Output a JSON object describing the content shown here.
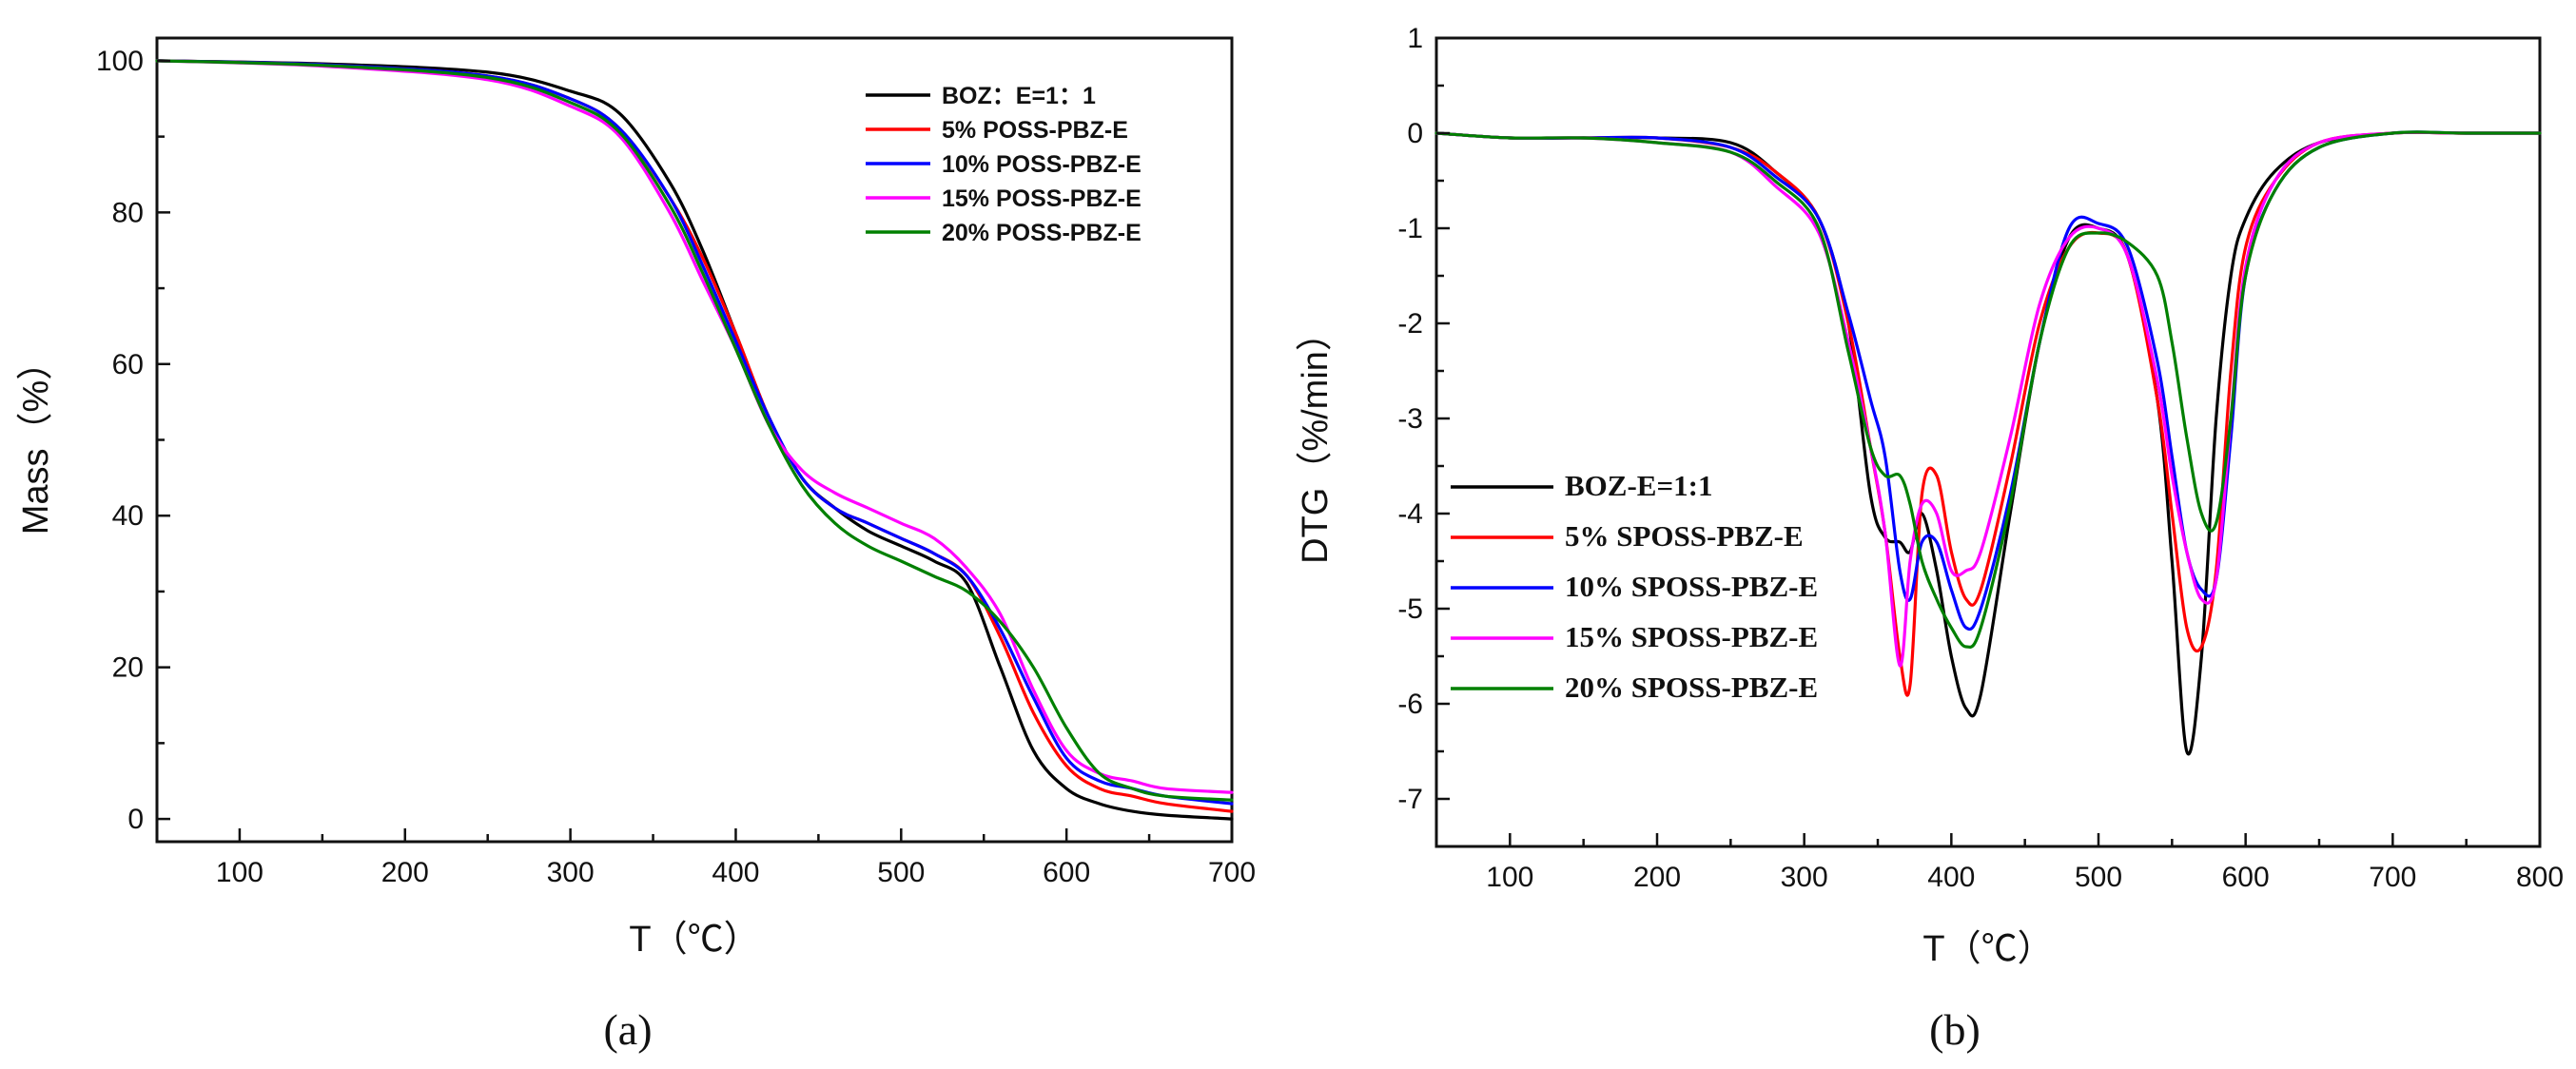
{
  "chart_data": [
    {
      "type": "line",
      "panel": "(a)",
      "xlabel": "T（℃）",
      "ylabel": "Mass（%）",
      "xlim": [
        50,
        700
      ],
      "ylim": [
        -3,
        103
      ],
      "xticks": [
        100,
        200,
        300,
        400,
        500,
        600,
        700
      ],
      "yticks": [
        0,
        20,
        40,
        60,
        80,
        100
      ],
      "x": [
        50,
        150,
        250,
        300,
        330,
        360,
        380,
        400,
        420,
        440,
        460,
        480,
        500,
        520,
        540,
        560,
        580,
        600,
        620,
        640,
        660,
        700
      ],
      "series": [
        {
          "name": "BOZ：E=1：1",
          "color": "#000000",
          "values": [
            100,
            99.6,
            98.5,
            96,
            93,
            84,
            75,
            64,
            53,
            45,
            41,
            38,
            36,
            34,
            31,
            20,
            9,
            4,
            2,
            1,
            0.5,
            0
          ]
        },
        {
          "name": "5% POSS-PBZ-E",
          "color": "#ff0000",
          "values": [
            100,
            99.5,
            98,
            95,
            91,
            82,
            74,
            64,
            53,
            45,
            41,
            39,
            37,
            35,
            32,
            24,
            14,
            7,
            4,
            3,
            2,
            1
          ]
        },
        {
          "name": "10% POSS-PBZ-E",
          "color": "#0000ff",
          "values": [
            100,
            99.5,
            98,
            95,
            91,
            82,
            73,
            63,
            53,
            45,
            41,
            39,
            37,
            35,
            32,
            25,
            16,
            8,
            5,
            4,
            3,
            2
          ]
        },
        {
          "name": "15% POSS-PBZ-E",
          "color": "#ff00ff",
          "values": [
            100,
            99.3,
            97.5,
            94,
            90,
            80,
            71,
            62,
            52,
            46,
            43,
            41,
            39,
            37,
            33,
            27,
            17,
            9,
            6,
            5,
            4,
            3.5
          ]
        },
        {
          "name": "20% POSS-PBZ-E",
          "color": "#008000",
          "values": [
            100,
            99.4,
            97.8,
            94.5,
            90.5,
            81,
            72,
            62,
            52,
            44,
            39,
            36,
            34,
            32,
            30,
            26,
            20,
            12,
            6,
            4,
            3,
            2.5
          ]
        }
      ]
    },
    {
      "type": "line",
      "panel": "(b)",
      "xlabel": "T（℃）",
      "ylabel": "DTG（%/min）",
      "xlim": [
        50,
        800
      ],
      "ylim": [
        -7.5,
        1
      ],
      "xticks": [
        100,
        200,
        300,
        400,
        500,
        600,
        700,
        800
      ],
      "yticks": [
        1,
        0,
        -1,
        -2,
        -3,
        -4,
        -5,
        -6,
        -7
      ],
      "x": [
        50,
        100,
        150,
        200,
        250,
        280,
        310,
        330,
        345,
        355,
        365,
        372,
        380,
        390,
        400,
        410,
        420,
        440,
        460,
        480,
        500,
        520,
        540,
        550,
        560,
        570,
        580,
        590,
        600,
        620,
        650,
        700,
        750,
        800
      ],
      "series": [
        {
          "name": "BOZ-E=1:1",
          "color": "#000000",
          "values": [
            0,
            -0.05,
            -0.05,
            -0.05,
            -0.1,
            -0.4,
            -0.9,
            -2.0,
            -3.8,
            -4.25,
            -4.3,
            -4.4,
            -4.0,
            -4.6,
            -5.5,
            -6.05,
            -5.9,
            -4.0,
            -2.2,
            -1.1,
            -1.0,
            -1.3,
            -2.8,
            -4.5,
            -6.5,
            -5.5,
            -3.0,
            -1.5,
            -0.9,
            -0.4,
            -0.1,
            0,
            0,
            0
          ]
        },
        {
          "name": "5%  SPOSS-PBZ-E",
          "color": "#ff0000",
          "values": [
            0,
            -0.05,
            -0.05,
            -0.05,
            -0.15,
            -0.4,
            -0.9,
            -2.0,
            -3.3,
            -4.2,
            -5.5,
            -5.8,
            -3.8,
            -3.6,
            -4.4,
            -4.9,
            -4.8,
            -3.5,
            -2.0,
            -1.2,
            -1.05,
            -1.3,
            -2.8,
            -4.0,
            -5.2,
            -5.4,
            -4.6,
            -2.5,
            -1.2,
            -0.5,
            -0.1,
            0,
            0,
            0
          ]
        },
        {
          "name": "10% SPOSS-PBZ-E",
          "color": "#0000ff",
          "values": [
            0,
            -0.05,
            -0.05,
            -0.05,
            -0.15,
            -0.45,
            -0.9,
            -1.9,
            -2.8,
            -3.4,
            -4.6,
            -4.9,
            -4.3,
            -4.3,
            -4.8,
            -5.2,
            -5.0,
            -3.8,
            -2.2,
            -1.0,
            -0.95,
            -1.2,
            -2.4,
            -3.4,
            -4.4,
            -4.8,
            -4.7,
            -3.2,
            -1.5,
            -0.6,
            -0.15,
            0,
            0,
            0
          ]
        },
        {
          "name": "15% SPOSS-PBZ-E",
          "color": "#ff00ff",
          "values": [
            0,
            -0.05,
            -0.05,
            -0.1,
            -0.2,
            -0.55,
            -1.05,
            -2.2,
            -3.3,
            -4.2,
            -5.6,
            -4.5,
            -3.9,
            -4.0,
            -4.6,
            -4.6,
            -4.4,
            -3.2,
            -1.8,
            -1.1,
            -1.0,
            -1.3,
            -2.6,
            -3.6,
            -4.4,
            -4.9,
            -4.7,
            -3.0,
            -1.4,
            -0.5,
            -0.1,
            0,
            0,
            0
          ]
        },
        {
          "name": "20% SPOSS-PBZ-E",
          "color": "#008000",
          "values": [
            0,
            -0.05,
            -0.05,
            -0.1,
            -0.2,
            -0.5,
            -1.0,
            -2.3,
            -3.3,
            -3.6,
            -3.6,
            -3.9,
            -4.5,
            -4.9,
            -5.2,
            -5.4,
            -5.2,
            -3.9,
            -2.2,
            -1.2,
            -1.05,
            -1.15,
            -1.5,
            -2.2,
            -3.2,
            -4.0,
            -4.1,
            -3.0,
            -1.5,
            -0.6,
            -0.15,
            0,
            0,
            0
          ]
        }
      ]
    }
  ]
}
